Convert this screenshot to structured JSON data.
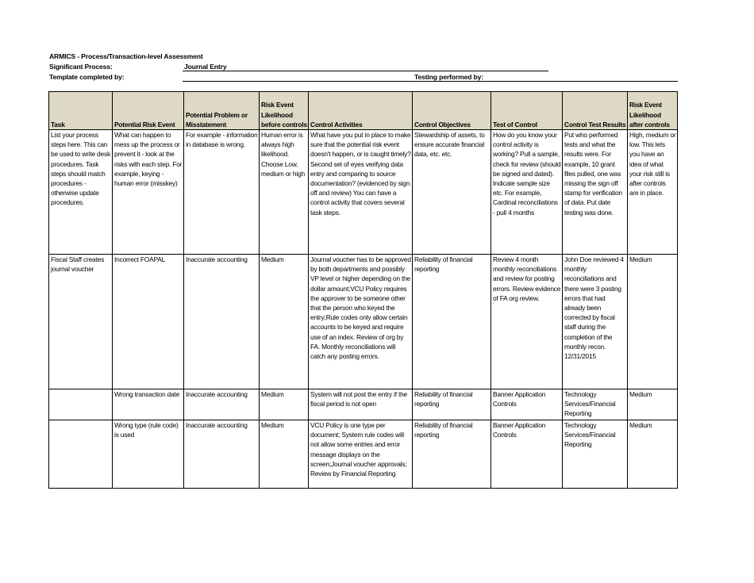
{
  "title": "ARMICS - Process/Transaction-level Assessment",
  "significant_process_label": "Significant Process:",
  "significant_process_value": "Journal Entry",
  "template_completed_label": "Template completed by:",
  "testing_performed_label": "Testing performed by:",
  "header_color": "#ddd9c4",
  "columns": [
    "Task",
    "Potential Risk Event",
    "Potential Problem or Misstatement",
    "Risk Event Likelihood before controls",
    "Control Activities",
    "Control Objectives",
    "Test of Control",
    "Control Test Results",
    "Risk Event Likelihood after controls"
  ],
  "rows": [
    [
      "List your process steps here.  This can be used to write desk procedures.  Task steps should match procedures - otherwise update procedures.",
      "What can happen to mess up the process or prevent it - look at the risks with each step.  For example, keying - human error (misskey)",
      "For example - information in database is wrong.",
      "Human error is always high likelihood.  Choose Low, medium or high",
      "What have you put in place to make sure that the potential risk event doesn't happen, or is caught timely?  Second set of eyes verifying data entry and comparing to source documentation? (evidenced by sign off and review)  You can have a control activity that covers several task steps.",
      "Stewardship of assets, to ensure accurate financial data, etc. etc.",
      "How do you know your control activity is working?  Pull a sample, check for review (should be signed and dated).  Indicate sample size etc.  For example, Cardinal reconciliations - pull 4 months",
      "Put who performed tests and what the results were.  For example, 10 grant files pulled, one was missing the sign off stamp for verification of data.  Put date testing was done.",
      "High, medium or low.  This lets you have an idea of what your risk still is after controls are in place."
    ],
    [
      "Fiscal Staff creates journal voucher",
      "Incorrect FOAPAL",
      "Inaccurate accounting",
      "Medium",
      "Journal voucher has to be approved by both departments and possibly VP level or higher depending on the dollar amount;VCU Policy requires the approver to be someone other that the person who keyed the entry;Rule codes only allow certain accounts to be keyed and require use of an index. Review of org by FA. Monthly reconciliations will catch any posting errors.",
      "Reliability of financial reporting",
      "Review 4 month monthly reconciliations and review for posting errors.  Review evidence of FA org review.",
      "John Doe reviewed 4 monthly reconciliations and there were 3 posting errors that had already been corrected by fiscal staff during the completion of the monthly recon. 12/31/2015",
      "Medium"
    ],
    [
      "",
      "Wrong transaction date",
      "Inaccurate accounting",
      "Medium",
      "System will not post the entry if the fiscal period is not open",
      "Reliability of financial reporting",
      "Banner Application Controls",
      "Technology Services/Financial Reporting",
      "Medium"
    ],
    [
      "",
      "Wrong type (rule code) is used",
      "Inaccurate accounting",
      "Medium",
      "VCU Policy is one type per document; System rule codes will not allow some entries and error message displays on the screen;Journal voucher approvals; Review by Financial Reporting",
      "Reliability of financial reporting",
      "Banner Application Controls",
      "Technology Services/Financial Reporting",
      "Medium"
    ]
  ]
}
